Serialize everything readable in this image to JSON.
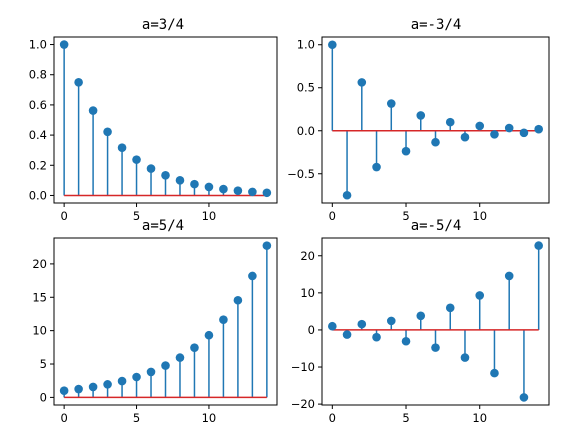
{
  "chart_data": [
    {
      "type": "stem",
      "title": "a=3/4",
      "x": [
        0,
        1,
        2,
        3,
        4,
        5,
        6,
        7,
        8,
        9,
        10,
        11,
        12,
        13,
        14
      ],
      "values": [
        1.0,
        0.75,
        0.5625,
        0.4219,
        0.3164,
        0.2373,
        0.178,
        0.1335,
        0.1001,
        0.0751,
        0.0563,
        0.0422,
        0.0317,
        0.0238,
        0.0178
      ],
      "xticks": [
        0,
        5,
        10
      ],
      "yticks": [
        0.0,
        0.2,
        0.4,
        0.6,
        0.8,
        1.0
      ],
      "ytick_labels": [
        "0.0",
        "0.2",
        "0.4",
        "0.6",
        "0.8",
        "1.0"
      ],
      "xlim": [
        -0.7,
        14.7
      ],
      "ylim": [
        -0.05,
        1.05
      ]
    },
    {
      "type": "stem",
      "title": "a=-3/4",
      "x": [
        0,
        1,
        2,
        3,
        4,
        5,
        6,
        7,
        8,
        9,
        10,
        11,
        12,
        13,
        14
      ],
      "values": [
        1.0,
        -0.75,
        0.5625,
        -0.4219,
        0.3164,
        -0.2373,
        0.178,
        -0.1335,
        0.1001,
        -0.0751,
        0.0563,
        -0.0422,
        0.0317,
        -0.0238,
        0.0178
      ],
      "xticks": [
        0,
        5,
        10
      ],
      "yticks": [
        -0.5,
        0.0,
        0.5,
        1.0
      ],
      "ytick_labels": [
        "−0.5",
        "0.0",
        "0.5",
        "1.0"
      ],
      "xlim": [
        -0.7,
        14.7
      ],
      "ylim": [
        -0.84,
        1.09
      ]
    },
    {
      "type": "stem",
      "title": "a=5/4",
      "x": [
        0,
        1,
        2,
        3,
        4,
        5,
        6,
        7,
        8,
        9,
        10,
        11,
        12,
        13,
        14
      ],
      "values": [
        1.0,
        1.25,
        1.5625,
        1.9531,
        2.4414,
        3.0518,
        3.8147,
        4.7684,
        5.9605,
        7.4506,
        9.3132,
        11.6415,
        14.5519,
        18.1899,
        22.7374
      ],
      "xticks": [
        0,
        5,
        10
      ],
      "yticks": [
        0,
        5,
        10,
        15,
        20
      ],
      "ytick_labels": [
        "0",
        "5",
        "10",
        "15",
        "20"
      ],
      "xlim": [
        -0.7,
        14.7
      ],
      "ylim": [
        -1.14,
        23.88
      ]
    },
    {
      "type": "stem",
      "title": "a=-5/4",
      "x": [
        0,
        1,
        2,
        3,
        4,
        5,
        6,
        7,
        8,
        9,
        10,
        11,
        12,
        13,
        14
      ],
      "values": [
        1.0,
        -1.25,
        1.5625,
        -1.9531,
        2.4414,
        -3.0518,
        3.8147,
        -4.7684,
        5.9605,
        -7.4506,
        9.3132,
        -11.6415,
        14.5519,
        -18.1899,
        22.7374
      ],
      "xticks": [
        0,
        5,
        10
      ],
      "yticks": [
        -20,
        -10,
        0,
        10,
        20
      ],
      "ytick_labels": [
        "−20",
        "−10",
        "0",
        "10",
        "20"
      ],
      "xlim": [
        -0.7,
        14.7
      ],
      "ylim": [
        -20.24,
        24.79
      ]
    }
  ],
  "colors": {
    "stem": "#1f77b4",
    "marker": "#1f77b4",
    "baseline": "#d62728",
    "axes": "#000000"
  }
}
